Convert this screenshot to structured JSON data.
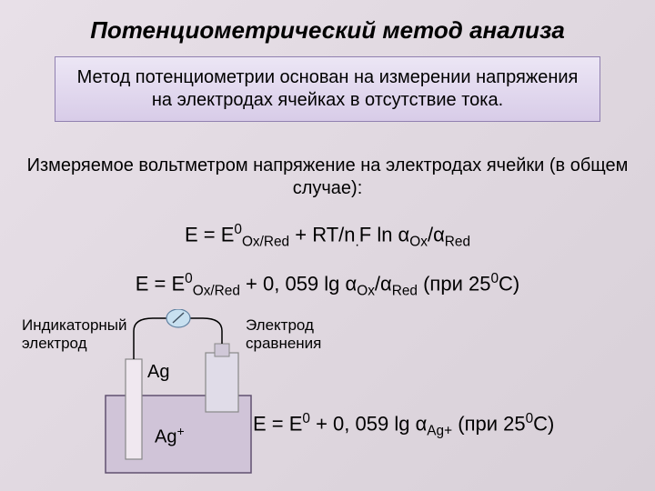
{
  "title": "Потенциометрический метод анализа",
  "intro": "Метод потенциометрии основан на измерении напряжения на электродах ячейках в отсутствие тока.",
  "subtitle": "Измеряемое вольтметром напряжение на электродах ячейки (в общем случае):",
  "formula1_html": "E = E<sup>0</sup><sub>Ox/Red</sub> + RT/n<sub>.</sub>F ln α<sub>Ox</sub>/α<sub>Red</sub>",
  "formula2_html": "E = E<sup>0</sup><sub>Ox/Red</sub> + 0, 059 lg α<sub>Ox</sub>/α<sub>Red</sub>  (при 25<sup>0</sup>С)",
  "label_indicator_1": "Индикаторный",
  "label_indicator_2": "электрод",
  "label_reference_1": "Электрод",
  "label_reference_2": "сравнения",
  "ag_label": "Ag",
  "agplus_html": "Ag<sup>+</sup>",
  "formula3_html": "E = E<sup>0</sup> + 0, 059 lg α<sub>Ag+</sub> (при 25<sup>0</sup>С)",
  "diagram": {
    "beaker_fill": "#d0c4d8",
    "beaker_stroke": "#605070",
    "electrode_fill": "#f0e8f0",
    "electrode_stroke": "#888",
    "wire_stroke": "#000",
    "meter_fill": "#c8e0f0",
    "meter_stroke": "#6080a0"
  },
  "colors": {
    "bg_top": "#e8e0e8",
    "bg_bottom": "#d8d0d8",
    "box_top": "#ece6f5",
    "box_bottom": "#d8cce8",
    "box_border": "#9080b0",
    "text": "#000000"
  }
}
